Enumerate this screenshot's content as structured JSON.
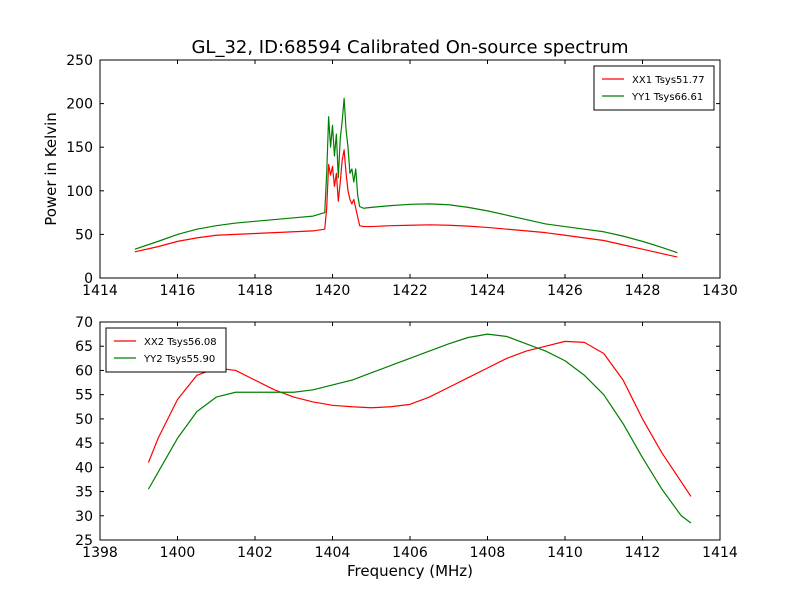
{
  "title": "GL_32, ID:68594 Calibrated On-source spectrum",
  "chart_data": [
    {
      "type": "line",
      "title": "GL_32, ID:68594 Calibrated On-source spectrum",
      "xlabel": "",
      "ylabel": "Power in Kelvin",
      "xlim": [
        1414,
        1430
      ],
      "ylim": [
        0,
        250
      ],
      "xticks": [
        1414,
        1416,
        1418,
        1420,
        1422,
        1424,
        1426,
        1428,
        1430
      ],
      "yticks": [
        0,
        50,
        100,
        150,
        200,
        250
      ],
      "grid": false,
      "legend": "top-right",
      "series": [
        {
          "name": "XX1 Tsys51.77",
          "color": "#ff0000",
          "x": [
            1414.9,
            1415.5,
            1416.0,
            1416.5,
            1417.0,
            1417.5,
            1418.0,
            1418.5,
            1419.0,
            1419.5,
            1419.8,
            1419.85,
            1419.9,
            1419.95,
            1420.0,
            1420.05,
            1420.1,
            1420.15,
            1420.2,
            1420.25,
            1420.3,
            1420.35,
            1420.4,
            1420.45,
            1420.5,
            1420.55,
            1420.6,
            1420.65,
            1420.7,
            1420.8,
            1421.0,
            1421.5,
            1422.0,
            1422.5,
            1423.0,
            1423.5,
            1424.0,
            1424.5,
            1425.0,
            1425.5,
            1426.0,
            1426.5,
            1427.0,
            1427.5,
            1428.0,
            1428.5,
            1428.9
          ],
          "y": [
            30,
            36,
            42,
            46,
            49,
            50,
            51,
            52,
            53,
            54,
            56,
            80,
            130,
            118,
            128,
            105,
            120,
            88,
            110,
            135,
            147,
            120,
            100,
            90,
            85,
            90,
            80,
            70,
            60,
            59,
            59,
            60,
            60.5,
            61,
            60.5,
            59.5,
            58,
            56,
            54,
            52,
            49,
            46,
            43,
            38,
            33,
            28,
            24
          ]
        },
        {
          "name": "YY1 Tsys66.61",
          "color": "#008000",
          "x": [
            1414.9,
            1415.5,
            1416.0,
            1416.5,
            1417.0,
            1417.5,
            1418.0,
            1418.5,
            1419.0,
            1419.5,
            1419.8,
            1419.85,
            1419.9,
            1419.95,
            1420.0,
            1420.05,
            1420.1,
            1420.15,
            1420.2,
            1420.25,
            1420.3,
            1420.35,
            1420.4,
            1420.45,
            1420.5,
            1420.55,
            1420.6,
            1420.65,
            1420.7,
            1420.8,
            1421.0,
            1421.5,
            1422.0,
            1422.5,
            1423.0,
            1423.5,
            1424.0,
            1424.5,
            1425.0,
            1425.5,
            1426.0,
            1426.5,
            1427.0,
            1427.5,
            1428.0,
            1428.5,
            1428.9
          ],
          "y": [
            33,
            42,
            50,
            56,
            60,
            63,
            65,
            67,
            69,
            71,
            75,
            120,
            185,
            150,
            175,
            140,
            165,
            115,
            160,
            180,
            206,
            170,
            150,
            120,
            125,
            110,
            125,
            95,
            82,
            80,
            81,
            83,
            84.5,
            85,
            84,
            81,
            77,
            72,
            67,
            62,
            59,
            56,
            53,
            48,
            42,
            35,
            29
          ]
        }
      ]
    },
    {
      "type": "line",
      "title": "",
      "xlabel": "Frequency (MHz)",
      "ylabel": "",
      "xlim": [
        1398,
        1414
      ],
      "ylim": [
        25,
        70
      ],
      "xticks": [
        1398,
        1400,
        1402,
        1404,
        1406,
        1408,
        1410,
        1412,
        1414
      ],
      "yticks": [
        25,
        30,
        35,
        40,
        45,
        50,
        55,
        60,
        65,
        70
      ],
      "grid": false,
      "legend": "top-left",
      "series": [
        {
          "name": "XX2 Tsys56.08",
          "color": "#ff0000",
          "x": [
            1399.25,
            1399.5,
            1400.0,
            1400.5,
            1401.0,
            1401.5,
            1402.0,
            1402.5,
            1403.0,
            1403.5,
            1404.0,
            1404.5,
            1405.0,
            1405.5,
            1406.0,
            1406.5,
            1407.0,
            1407.5,
            1408.0,
            1408.5,
            1409.0,
            1409.5,
            1410.0,
            1410.5,
            1411.0,
            1411.5,
            1412.0,
            1412.5,
            1413.0,
            1413.25
          ],
          "y": [
            41,
            46,
            54,
            59,
            60.5,
            60,
            58,
            56,
            54.5,
            53.5,
            52.8,
            52.5,
            52.3,
            52.5,
            53,
            54.5,
            56.5,
            58.5,
            60.5,
            62.5,
            64,
            65,
            66,
            65.8,
            63.5,
            58,
            50,
            43,
            37,
            34
          ]
        },
        {
          "name": "YY2 Tsys55.90",
          "color": "#008000",
          "x": [
            1399.25,
            1399.5,
            1400.0,
            1400.5,
            1401.0,
            1401.5,
            1402.0,
            1402.5,
            1403.0,
            1403.5,
            1404.0,
            1404.5,
            1405.0,
            1405.5,
            1406.0,
            1406.5,
            1407.0,
            1407.5,
            1408.0,
            1408.5,
            1409.0,
            1409.5,
            1410.0,
            1410.5,
            1411.0,
            1411.5,
            1412.0,
            1412.5,
            1413.0,
            1413.25
          ],
          "y": [
            35.5,
            39,
            46,
            51.5,
            54.5,
            55.5,
            55.5,
            55.5,
            55.5,
            56,
            57,
            58,
            59.5,
            61,
            62.5,
            64,
            65.5,
            66.8,
            67.5,
            67,
            65.5,
            64,
            62,
            59,
            55,
            49,
            42,
            35.5,
            30,
            28.5
          ]
        }
      ]
    }
  ]
}
